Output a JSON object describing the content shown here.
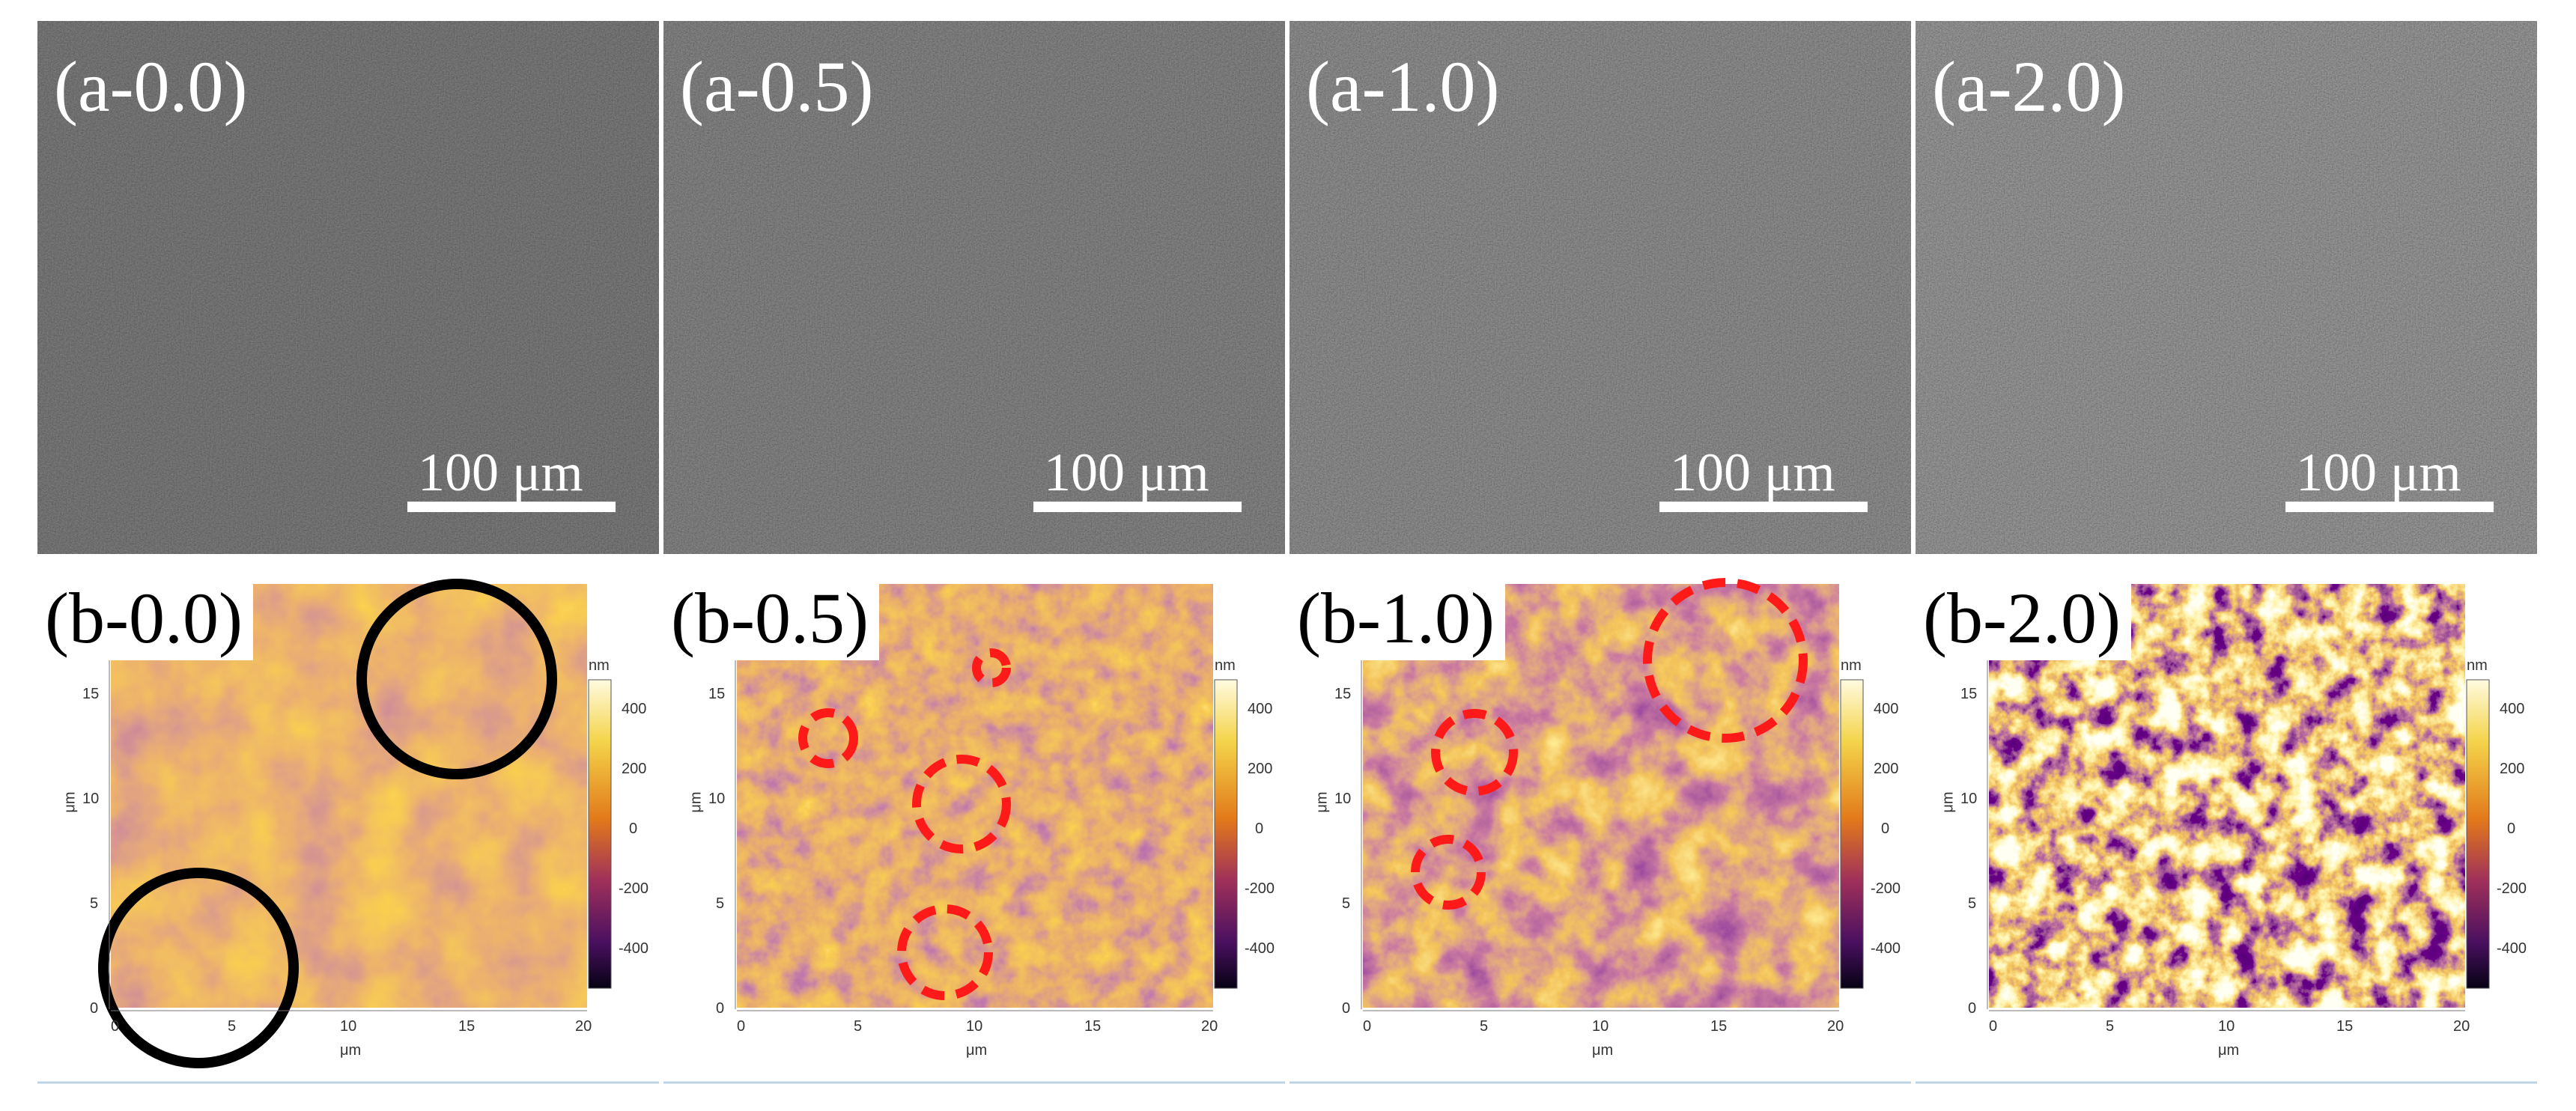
{
  "sem_panels": [
    {
      "label": "(a-0.0)",
      "scale": "100 μm"
    },
    {
      "label": "(a-0.5)",
      "scale": "100 μm"
    },
    {
      "label": "(a-1.0)",
      "scale": "100 μm"
    },
    {
      "label": "(a-2.0)",
      "scale": "100 μm"
    }
  ],
  "afm_panels": [
    {
      "label": "(b-0.0)",
      "circle_color": "#000000",
      "circle_style": "solid"
    },
    {
      "label": "(b-0.5)",
      "circle_color": "#ff0000",
      "circle_style": "dashed"
    },
    {
      "label": "(b-1.0)",
      "circle_color": "#ff0000",
      "circle_style": "dashed"
    },
    {
      "label": "(b-2.0)",
      "circle_color": "#000000",
      "circle_style": "none"
    }
  ],
  "axis": {
    "x_ticks": [
      "0",
      "5",
      "10",
      "15",
      "20"
    ],
    "y_ticks": [
      "0",
      "5",
      "10",
      "15"
    ],
    "x_unit": "μm",
    "y_unit": "μm"
  },
  "colorbar": {
    "unit": "nm",
    "ticks": [
      "400",
      "200",
      "0",
      "-200",
      "-400"
    ]
  }
}
